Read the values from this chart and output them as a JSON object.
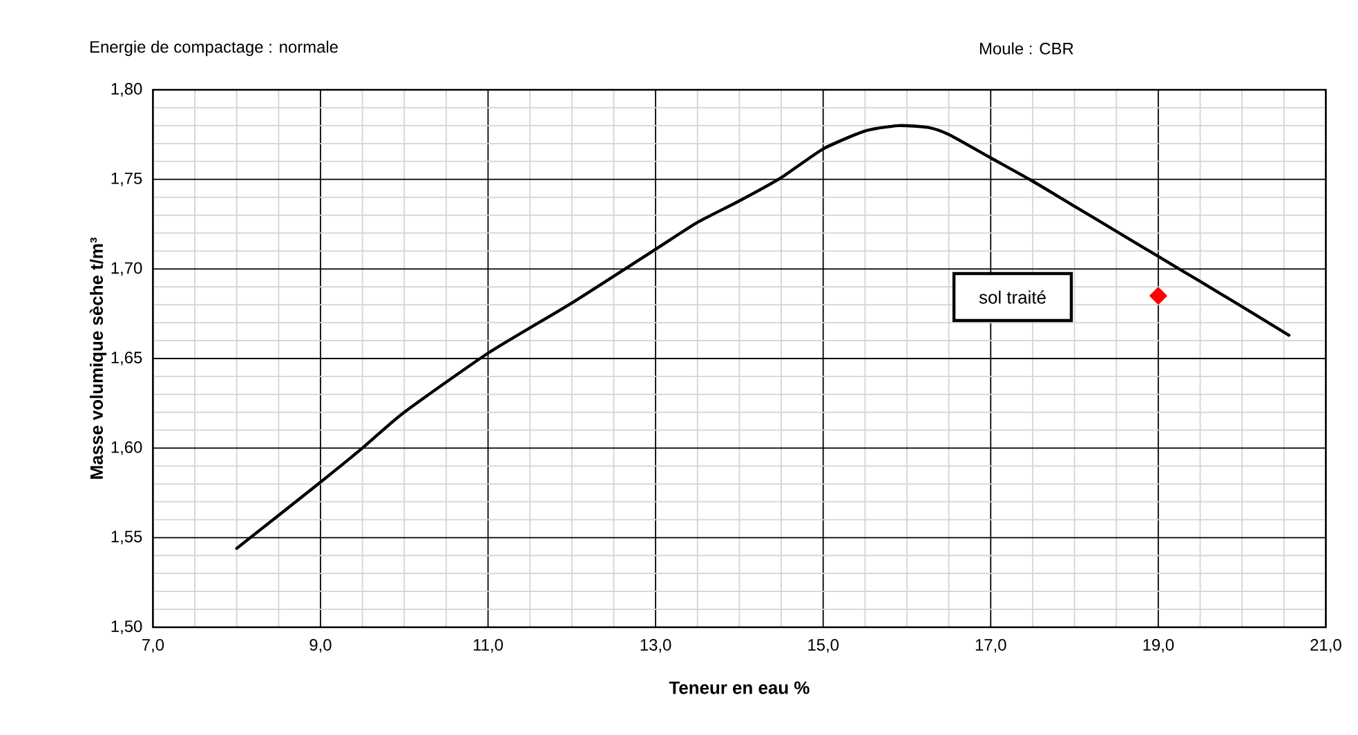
{
  "chart_data": {
    "type": "line",
    "xlabel": "Teneur en eau %",
    "ylabel": "Masse volumique  sèche t/m³",
    "annotations": [
      "Energie de compactage :   normale",
      "Moule :   CBR",
      "sol traité"
    ],
    "series": [
      {
        "color": "#000000",
        "marker": "none",
        "line_style": "solid",
        "x": [
          8.0,
          9.0,
          9.5,
          10.0,
          11.0,
          12.0,
          13.0,
          13.5,
          14.0,
          14.5,
          15.0,
          15.5,
          15.9,
          16.25,
          16.5,
          17.0,
          17.5,
          18.0,
          18.5,
          19.0,
          19.5,
          20.0,
          20.56
        ],
        "values": [
          1.544,
          1.581,
          1.6,
          1.62,
          1.653,
          1.681,
          1.711,
          1.726,
          1.738,
          1.751,
          1.767,
          1.777,
          1.78,
          1.779,
          1.775,
          1.762,
          1.749,
          1.735,
          1.721,
          1.707,
          1.693,
          1.679,
          1.663
        ]
      },
      {
        "type": "scatter",
        "color": "#ff0000",
        "marker": "diamond",
        "x": [
          19.0
        ],
        "values": [
          1.685
        ]
      }
    ],
    "xlim": [
      7.0,
      21.0
    ],
    "ylim": [
      1.5,
      1.8
    ],
    "xticks": [
      {
        "value": 7.0,
        "label": "7,0"
      },
      {
        "value": 9.0,
        "label": "9,0"
      },
      {
        "value": 11.0,
        "label": "11,0"
      },
      {
        "value": 13.0,
        "label": "13,0"
      },
      {
        "value": 15.0,
        "label": "15,0"
      },
      {
        "value": 17.0,
        "label": "17,0"
      },
      {
        "value": 19.0,
        "label": "19,0"
      },
      {
        "value": 21.0,
        "label": "21,0"
      }
    ],
    "yticks": [
      {
        "value": 1.5,
        "label": "1,50"
      },
      {
        "value": 1.55,
        "label": "1,55"
      },
      {
        "value": 1.6,
        "label": "1,60"
      },
      {
        "value": 1.65,
        "label": "1,65"
      },
      {
        "value": 1.7,
        "label": "1,70"
      },
      {
        "value": 1.75,
        "label": "1,75"
      },
      {
        "value": 1.8,
        "label": "1,80"
      }
    ],
    "grid": true
  }
}
